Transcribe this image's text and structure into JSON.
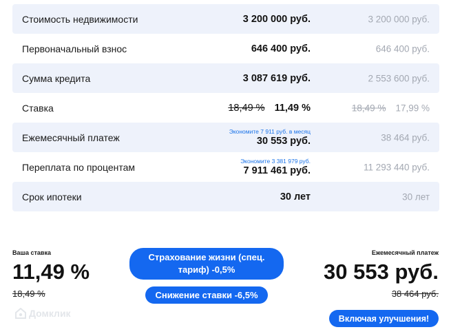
{
  "table": {
    "rows": [
      {
        "label": "Стоимость недвижимости",
        "value": "3 200 000 руб.",
        "compare": "3 200 000 руб."
      },
      {
        "label": "Первоначальный взнос",
        "value": "646 400 руб.",
        "compare": "646 400 руб."
      },
      {
        "label": "Сумма кредита",
        "value": "3 087 619 руб.",
        "compare": "2 553 600 руб."
      },
      {
        "label": "Ставка",
        "old_value": "18,49 %",
        "value": "11,49 %",
        "compare_old": "18,49 %",
        "compare": "17,99 %"
      },
      {
        "label": "Ежемесячный платеж",
        "hint": "Экономите 7 911 руб. в месяц",
        "value": "30 553 руб.",
        "compare": "38 464 руб."
      },
      {
        "label": "Переплата по процентам",
        "hint": "Экономите 3 381 979 руб.",
        "value": "7 911 461 руб.",
        "compare": "11 293 440 руб."
      },
      {
        "label": "Срок ипотеки",
        "value": "30 лет",
        "compare": "30 лет"
      }
    ]
  },
  "summary": {
    "rate_label": "Ваша ставка",
    "rate_value": "11,49 %",
    "rate_old": "18,49 %",
    "payment_label": "Ежемесячный платеж",
    "payment_value": "30 553 руб.",
    "payment_old": "38 464 руб."
  },
  "buttons": {
    "insurance": "Страхование жизни (спец. тариф) -0,5%",
    "rate_reduction": "Снижение ставки -6,5%",
    "with_improvements": "Включая улучшения!"
  },
  "logo": {
    "text": "Домклик",
    "icon": "domclick-logo-icon"
  },
  "colors": {
    "accent": "#1468f0",
    "row_shade": "#eef2fb",
    "muted": "#a3a8b2",
    "hint": "#1a73e8"
  }
}
